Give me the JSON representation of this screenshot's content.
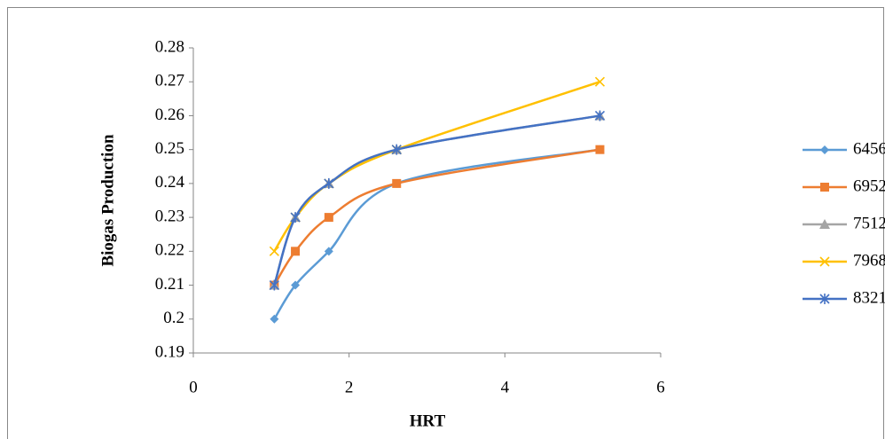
{
  "chart_data": {
    "type": "line",
    "x_label": "HRT",
    "y_label": "Biogas Production",
    "x": [
      1.04,
      1.31,
      1.74,
      2.61,
      5.22
    ],
    "xlim": [
      0,
      6
    ],
    "xticks": [
      0,
      2,
      4,
      6
    ],
    "ylim": [
      0.19,
      0.28
    ],
    "yticks": [
      0.19,
      0.2,
      0.21,
      0.22,
      0.23,
      0.24,
      0.25,
      0.26,
      0.27,
      0.28
    ],
    "legend": "right",
    "smooth": true,
    "series": [
      {
        "name": "6456",
        "color": "#5b9bd5",
        "marker": "diamond",
        "values": [
          0.2,
          0.21,
          0.22,
          0.24,
          0.25
        ]
      },
      {
        "name": "6952",
        "color": "#ed7d31",
        "marker": "square",
        "values": [
          0.21,
          0.22,
          0.23,
          0.24,
          0.25
        ]
      },
      {
        "name": "7512",
        "color": "#a5a5a5",
        "marker": "triangle",
        "values": [
          0.21,
          0.23,
          0.24,
          0.25,
          0.26
        ]
      },
      {
        "name": "7968",
        "color": "#ffc000",
        "marker": "x",
        "values": [
          0.22,
          0.23,
          0.24,
          0.25,
          0.27
        ]
      },
      {
        "name": "8321",
        "color": "#4472c4",
        "marker": "star",
        "values": [
          0.21,
          0.23,
          0.24,
          0.25,
          0.26
        ]
      }
    ]
  }
}
